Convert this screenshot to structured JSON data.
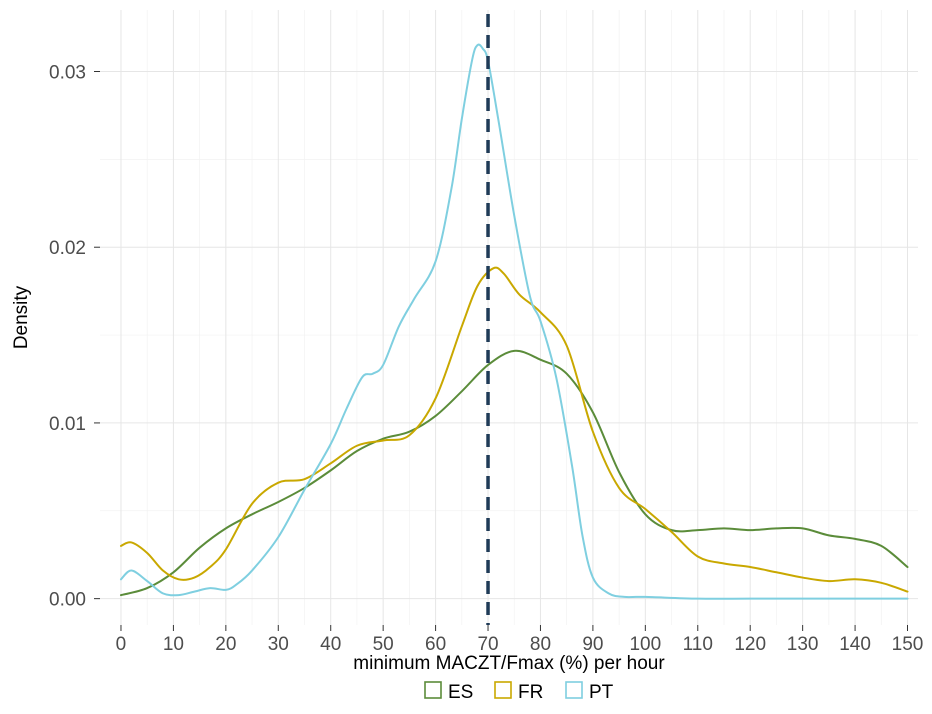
{
  "chart_data": {
    "type": "line",
    "xlabel": "minimum MACZT/Fmax (%) per hour",
    "ylabel": "Density",
    "xlim": [
      -4,
      152
    ],
    "ylim": [
      -0.0015,
      0.0335
    ],
    "x_ticks": [
      0,
      10,
      20,
      30,
      40,
      50,
      60,
      70,
      80,
      90,
      100,
      110,
      120,
      130,
      140,
      150
    ],
    "x_tick_labels": [
      "0",
      "10",
      "20",
      "30",
      "40",
      "50",
      "60",
      "70",
      "80",
      "90",
      "100",
      "110",
      "120",
      "130",
      "140",
      "150"
    ],
    "y_ticks": [
      0,
      0.01,
      0.02,
      0.03
    ],
    "y_tick_labels": [
      "0.00",
      "0.01",
      "0.02",
      "0.03"
    ],
    "grid": true,
    "legend_position": "bottom",
    "reference_line": {
      "x": 70,
      "style": "dashed",
      "color": "#1f3b57"
    },
    "series": [
      {
        "name": "ES",
        "color": "#5b8c3a",
        "x": [
          0,
          5,
          10,
          15,
          20,
          25,
          30,
          35,
          40,
          45,
          50,
          55,
          60,
          65,
          70,
          75,
          80,
          85,
          90,
          95,
          100,
          105,
          110,
          115,
          120,
          125,
          130,
          135,
          140,
          145,
          150
        ],
        "y": [
          0.0002,
          0.0006,
          0.0015,
          0.0029,
          0.004,
          0.0048,
          0.0055,
          0.0063,
          0.0073,
          0.0084,
          0.0091,
          0.0095,
          0.0104,
          0.0118,
          0.0133,
          0.0141,
          0.0136,
          0.0128,
          0.0106,
          0.0072,
          0.0048,
          0.0039,
          0.0039,
          0.004,
          0.0039,
          0.004,
          0.004,
          0.0036,
          0.0034,
          0.003,
          0.0018
        ]
      },
      {
        "name": "FR",
        "color": "#c9a800",
        "x": [
          0,
          2,
          5,
          8,
          11,
          14,
          17,
          20,
          25,
          30,
          35,
          40,
          45,
          50,
          55,
          60,
          65,
          68,
          71,
          73,
          76,
          80,
          85,
          90,
          95,
          100,
          105,
          110,
          115,
          120,
          125,
          130,
          135,
          140,
          145,
          150
        ],
        "y": [
          0.003,
          0.0032,
          0.0026,
          0.0016,
          0.0011,
          0.0012,
          0.0018,
          0.0028,
          0.0054,
          0.0066,
          0.0068,
          0.0077,
          0.0087,
          0.009,
          0.0093,
          0.0114,
          0.0155,
          0.0178,
          0.0188,
          0.0185,
          0.0173,
          0.0163,
          0.0144,
          0.0095,
          0.0063,
          0.0051,
          0.0038,
          0.0024,
          0.002,
          0.0018,
          0.0015,
          0.0012,
          0.001,
          0.0011,
          0.0009,
          0.0004
        ]
      },
      {
        "name": "PT",
        "color": "#7fcfe0",
        "x": [
          0,
          2,
          5,
          8,
          11,
          14,
          17,
          20,
          22,
          25,
          30,
          35,
          40,
          43,
          46,
          48,
          50,
          53,
          56,
          60,
          63,
          65,
          67,
          68,
          69,
          70,
          72,
          75,
          78,
          80,
          83,
          86,
          88,
          90,
          93,
          96,
          100,
          110,
          120,
          130,
          140,
          150
        ],
        "y": [
          0.0011,
          0.0016,
          0.001,
          0.0003,
          0.0002,
          0.0004,
          0.0006,
          0.0005,
          0.0008,
          0.0016,
          0.0035,
          0.0062,
          0.0088,
          0.0108,
          0.0126,
          0.0128,
          0.0133,
          0.0155,
          0.0171,
          0.0192,
          0.0233,
          0.0273,
          0.0307,
          0.0315,
          0.0313,
          0.0306,
          0.0272,
          0.0218,
          0.0172,
          0.0158,
          0.0126,
          0.0076,
          0.0036,
          0.0012,
          0.0003,
          0.0001,
          0.0001,
          0,
          0,
          0,
          0,
          0
        ]
      }
    ]
  }
}
